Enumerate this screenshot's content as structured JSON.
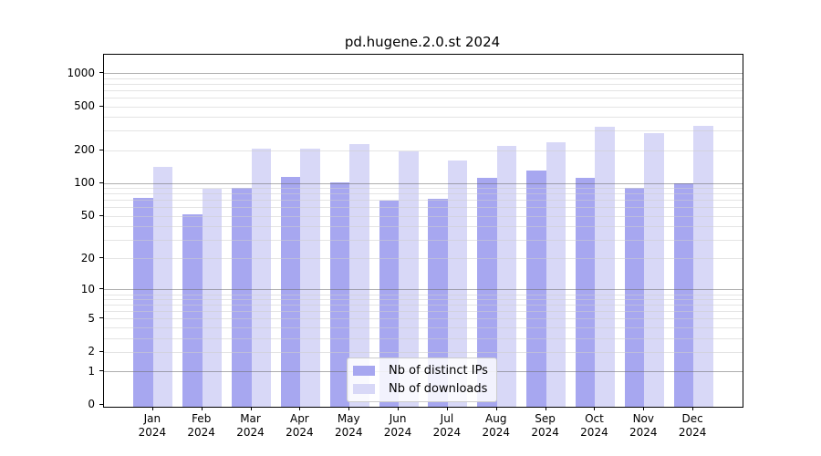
{
  "chart_data": {
    "type": "bar",
    "title": "pd.hugene.2.0.st 2024",
    "categories": [
      "Jan",
      "Feb",
      "Mar",
      "Apr",
      "May",
      "Jun",
      "Jul",
      "Aug",
      "Sep",
      "Oct",
      "Nov",
      "Dec"
    ],
    "category_year": "2024",
    "series": [
      {
        "name": "Nb of distinct IPs",
        "color": "#a7a7f0",
        "values": [
          73,
          52,
          90,
          115,
          102,
          69,
          72,
          111,
          130,
          112,
          91,
          100
        ]
      },
      {
        "name": "Nb of downloads",
        "color": "#d8d8f7",
        "values": [
          140,
          89,
          207,
          208,
          228,
          193,
          162,
          217,
          237,
          327,
          283,
          331
        ]
      }
    ],
    "xlabel": "",
    "ylabel": "",
    "y_ticks": [
      0,
      1,
      2,
      5,
      10,
      20,
      50,
      100,
      200,
      500,
      1000
    ],
    "y_scale": "log1p",
    "ylim": [
      0,
      1465
    ],
    "grid": true,
    "grid_major_values": [
      1,
      10,
      100,
      1000
    ],
    "legend_position": "lower center",
    "colors": {
      "distinct_ips": "#a7a7f0",
      "downloads": "#d8d8f7",
      "grid_major": "#6e6e6e",
      "grid_minor": "#cdcdcd",
      "axis": "#000000",
      "background": "#ffffff"
    }
  }
}
